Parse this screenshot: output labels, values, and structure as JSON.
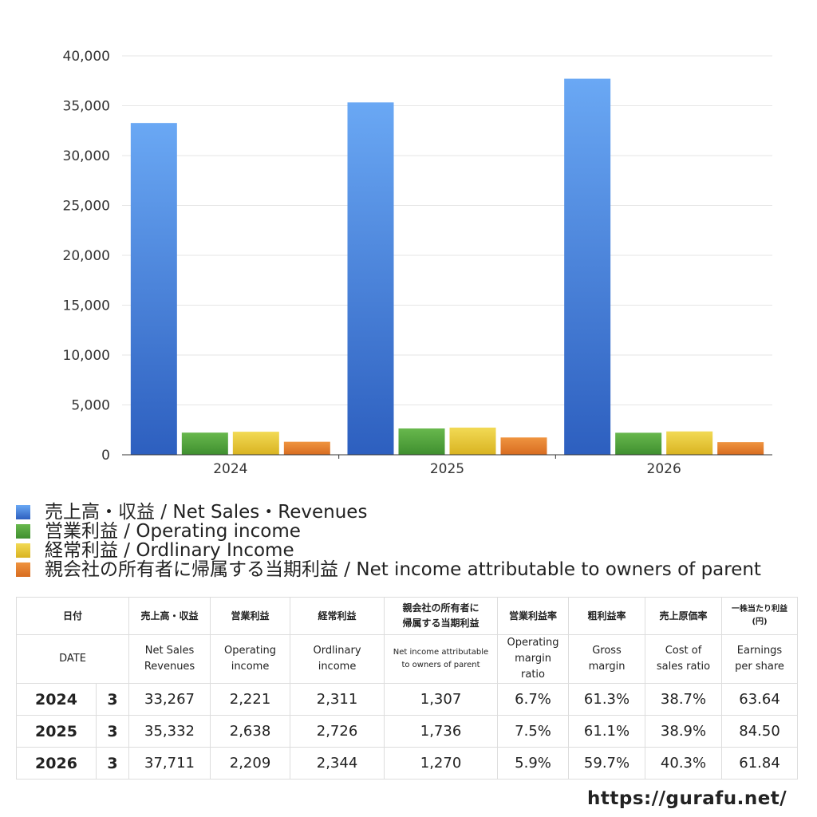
{
  "chart_data": {
    "type": "bar",
    "categories": [
      "2024",
      "2025",
      "2026"
    ],
    "series": [
      {
        "name": "売上高・収益 / Net Sales・Revenues",
        "values": [
          33267,
          35332,
          37711
        ]
      },
      {
        "name": "営業利益 / Operating income",
        "values": [
          2221,
          2638,
          2209
        ]
      },
      {
        "name": "経常利益 / Ordlinary Income",
        "values": [
          2311,
          2726,
          2344
        ]
      },
      {
        "name": "親会社の所有者に帰属する当期利益 / Net income attributable to owners of parent",
        "values": [
          1307,
          1736,
          1270
        ]
      }
    ],
    "colors": [
      "#3f7fdc",
      "#4aa43a",
      "#e6c431",
      "#e07b2a"
    ],
    "ylim": [
      0,
      40000
    ],
    "yticks": [
      0,
      5000,
      10000,
      15000,
      20000,
      25000,
      30000,
      35000,
      40000
    ],
    "ytick_labels": [
      "0",
      "5,000",
      "10,000",
      "15,000",
      "20,000",
      "25,000",
      "30,000",
      "35,000",
      "40,000"
    ],
    "grid": true,
    "legend_position": "bottom"
  },
  "legend": [
    "売上高・収益 / Net Sales・Revenues",
    "営業利益 / Operating income",
    "経常利益 / Ordlinary Income",
    "親会社の所有者に帰属する当期利益 / Net income attributable to owners of parent"
  ],
  "table": {
    "header_jp": {
      "date": "日付",
      "sales": "売上高・収益",
      "op": "営業利益",
      "ord": "経常利益",
      "net_1": "親会社の所有者に",
      "net_2": "帰属する当期利益",
      "opm": "営業利益率",
      "gm": "粗利益率",
      "cogs": "売上原価率",
      "eps_1": "一株当たり利益",
      "eps_2": "(円)"
    },
    "header_en": {
      "date": "DATE",
      "sales_1": "Net Sales",
      "sales_2": "Revenues",
      "op_1": "Operating",
      "op_2": "income",
      "ord_1": "Ordlinary",
      "ord_2": "income",
      "net_1": "Net income attributable",
      "net_2": "to owners of parent",
      "opm_1": "Operating",
      "opm_2": "margin",
      "opm_3": "ratio",
      "gm_1": "Gross",
      "gm_2": "margin",
      "cogs_1": "Cost of",
      "cogs_2": "sales ratio",
      "eps_1": "Earnings",
      "eps_2": "per share"
    },
    "rows": [
      {
        "year": "2024",
        "month": "3",
        "sales": "33,267",
        "op": "2,221",
        "ord": "2,311",
        "net": "1,307",
        "opm": "6.7%",
        "gm": "61.3%",
        "cogs": "38.7%",
        "eps": "63.64"
      },
      {
        "year": "2025",
        "month": "3",
        "sales": "35,332",
        "op": "2,638",
        "ord": "2,726",
        "net": "1,736",
        "opm": "7.5%",
        "gm": "61.1%",
        "cogs": "38.9%",
        "eps": "84.50"
      },
      {
        "year": "2026",
        "month": "3",
        "sales": "37,711",
        "op": "2,209",
        "ord": "2,344",
        "net": "1,270",
        "opm": "5.9%",
        "gm": "59.7%",
        "cogs": "40.3%",
        "eps": "61.84"
      }
    ]
  },
  "footer": {
    "url": "https://gurafu.net/"
  }
}
